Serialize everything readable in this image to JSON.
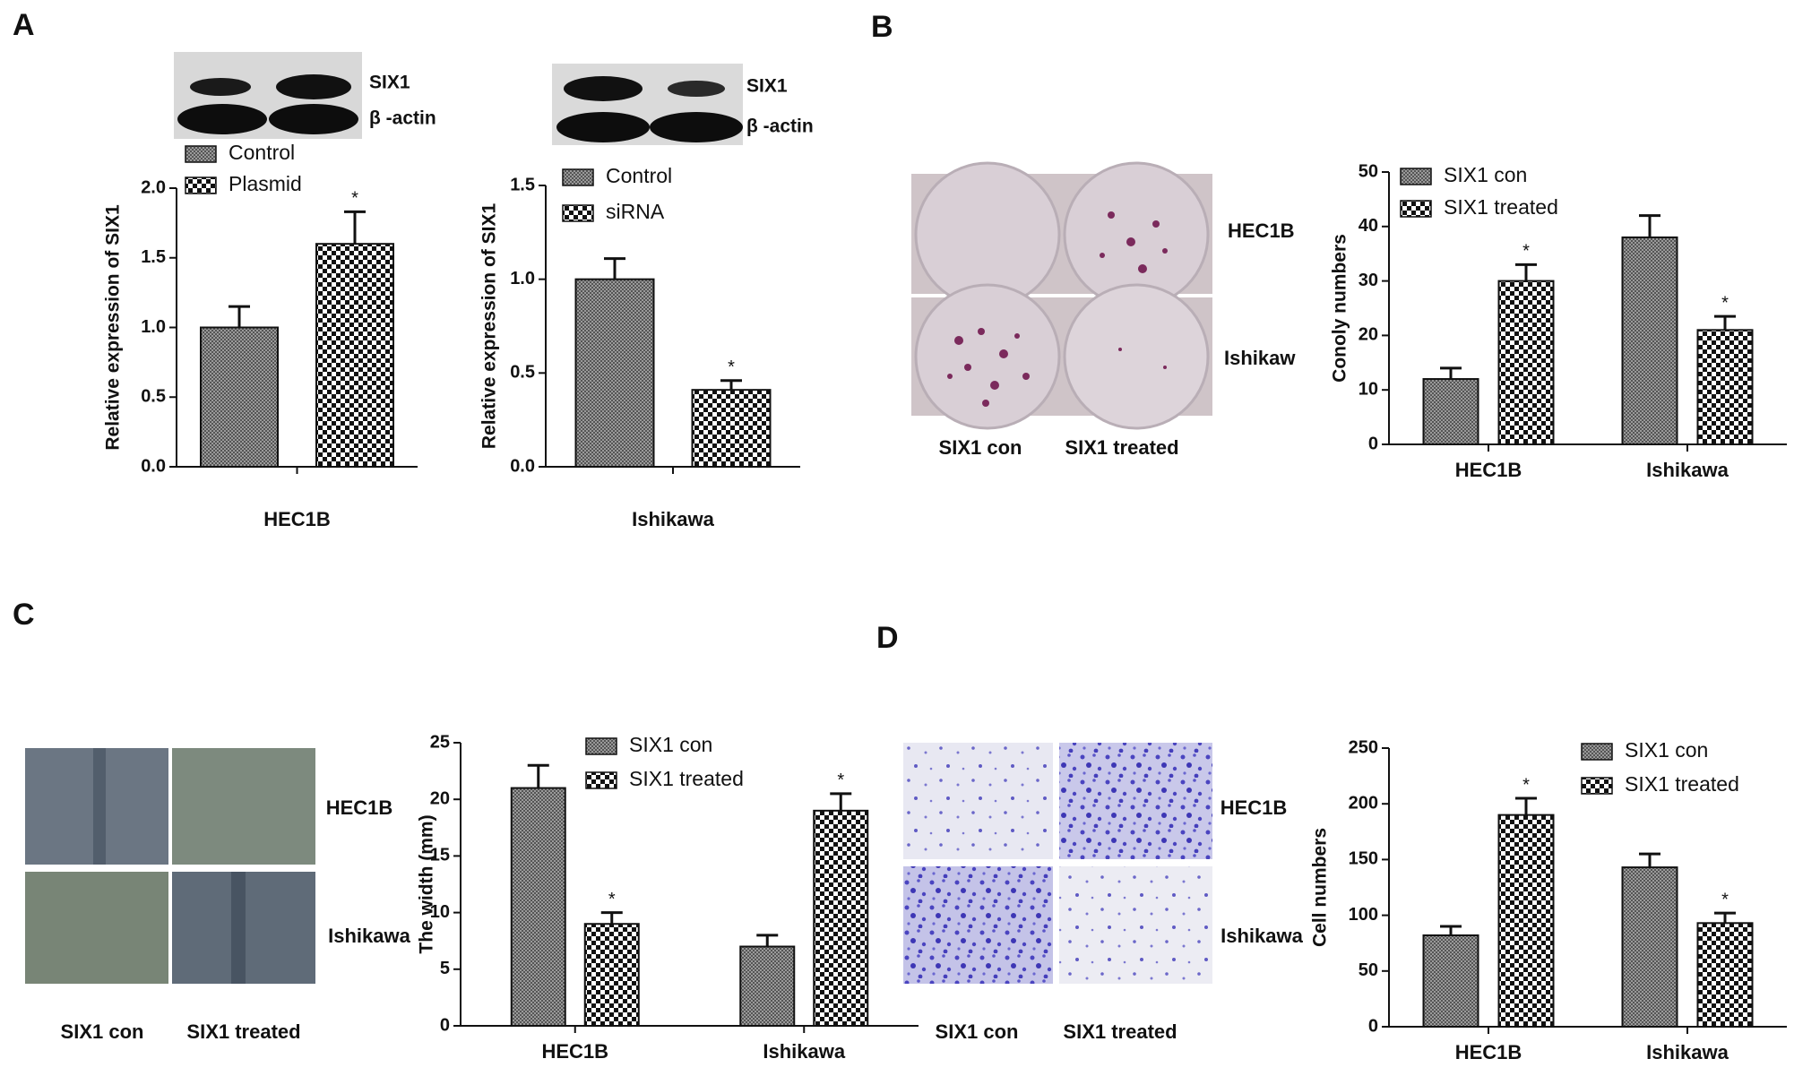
{
  "figure": {
    "panel_labels": [
      "A",
      "B",
      "C",
      "D"
    ],
    "blots": [
      {
        "bands": [
          "SIX1",
          "β -actin"
        ]
      },
      {
        "bands": [
          "SIX1",
          "β -actin"
        ]
      }
    ],
    "colony_images": {
      "rows": [
        "HEC1B",
        "Ishikaw"
      ],
      "columns": [
        "SIX1 con",
        "SIX1 treated"
      ]
    },
    "wound_images": {
      "rows": [
        "HEC1B",
        "Ishikawa"
      ],
      "columns": [
        "SIX1 con",
        "SIX1 treated"
      ]
    },
    "transwell_images": {
      "rows": [
        "HEC1B",
        "Ishikawa"
      ],
      "columns": [
        "SIX1 con",
        "SIX1 treated"
      ]
    }
  },
  "chart_data": [
    {
      "type": "bar",
      "ylabel": "Relative expression of SIX1",
      "categories": [
        "HEC1B"
      ],
      "series": [
        {
          "name": "Control",
          "pattern": "fine",
          "values": [
            1.0
          ],
          "errors": [
            0.15
          ]
        },
        {
          "name": "Plasmid",
          "pattern": "checker",
          "values": [
            1.6
          ],
          "errors": [
            0.23
          ],
          "annotations": [
            "*"
          ]
        }
      ],
      "ylim": [
        0,
        2
      ],
      "yticks": [
        {
          "value": 0,
          "label": "0.0"
        },
        0.5,
        {
          "value": 1,
          "label": "1.0"
        },
        1.5,
        {
          "value": 2,
          "label": "2.0"
        }
      ]
    },
    {
      "type": "bar",
      "ylabel": "Relative expression of SIX1",
      "categories": [
        "Ishikawa"
      ],
      "series": [
        {
          "name": "Control",
          "pattern": "fine",
          "values": [
            1.0
          ],
          "errors": [
            0.11
          ]
        },
        {
          "name": "siRNA",
          "pattern": "checker",
          "values": [
            0.41
          ],
          "errors": [
            0.05
          ],
          "annotations": [
            "*"
          ]
        }
      ],
      "ylim": [
        0,
        1.5
      ],
      "yticks": [
        {
          "value": 0,
          "label": "0.0"
        },
        0.5,
        {
          "value": 1,
          "label": "1.0"
        },
        1.5
      ]
    },
    {
      "type": "bar",
      "ylabel": "Conoly numbers",
      "categories": [
        "HEC1B",
        "Ishikawa"
      ],
      "series": [
        {
          "name": "SIX1 con",
          "pattern": "fine",
          "values": [
            12,
            38
          ],
          "errors": [
            2,
            4
          ]
        },
        {
          "name": "SIX1 treated",
          "pattern": "checker",
          "values": [
            30,
            21
          ],
          "errors": [
            3,
            2.5
          ],
          "annotations": [
            "*",
            "*"
          ]
        }
      ],
      "ylim": [
        0,
        50
      ],
      "yticks": [
        0,
        10,
        20,
        30,
        40,
        50
      ]
    },
    {
      "type": "bar",
      "ylabel": "The width (mm)",
      "categories": [
        "HEC1B",
        "Ishikawa"
      ],
      "series": [
        {
          "name": "SIX1 con",
          "pattern": "fine",
          "values": [
            21,
            7
          ],
          "errors": [
            2,
            1
          ]
        },
        {
          "name": "SIX1 treated",
          "pattern": "checker",
          "values": [
            9,
            19
          ],
          "errors": [
            1,
            1.5
          ],
          "annotations": [
            "*",
            "*"
          ]
        }
      ],
      "ylim": [
        0,
        25
      ],
      "yticks": [
        0,
        5,
        10,
        15,
        20,
        25
      ]
    },
    {
      "type": "bar",
      "ylabel": "Cell numbers",
      "categories": [
        "HEC1B",
        "Ishikawa"
      ],
      "series": [
        {
          "name": "SIX1 con",
          "pattern": "fine",
          "values": [
            82,
            143
          ],
          "errors": [
            8,
            12
          ]
        },
        {
          "name": "SIX1 treated",
          "pattern": "checker",
          "values": [
            190,
            93
          ],
          "errors": [
            15,
            9
          ],
          "annotations": [
            "*",
            "*"
          ]
        }
      ],
      "ylim": [
        0,
        250
      ],
      "yticks": [
        0,
        50,
        100,
        150,
        200,
        250
      ]
    }
  ]
}
